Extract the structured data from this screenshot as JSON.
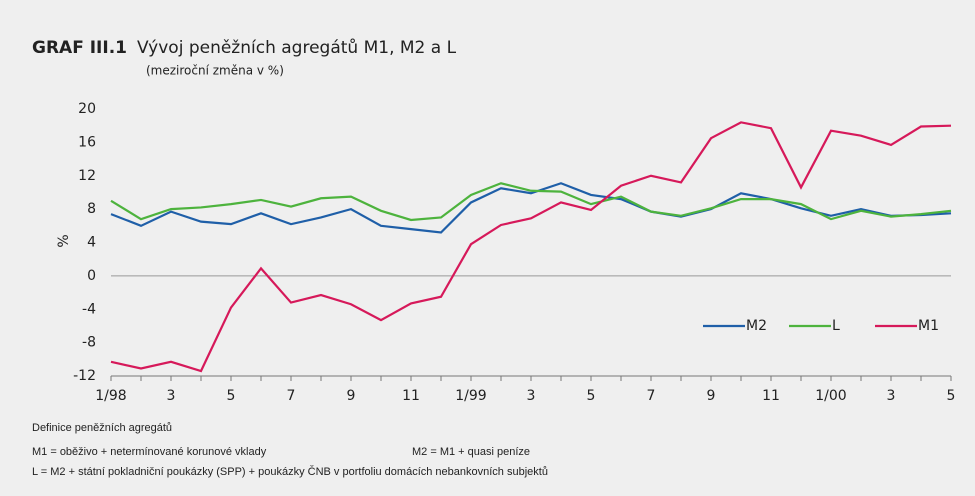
{
  "chart_data": {
    "type": "line",
    "title_label": "GRAF III.1",
    "title": "Vývoj peněžních agregátů M1, M2 a L",
    "subtitle": "(meziroční změna v %)",
    "y_label": "%",
    "categories": [
      "1/98",
      null,
      "3",
      null,
      "5",
      null,
      "7",
      null,
      "9",
      null,
      "11",
      null,
      "1/99",
      null,
      "3",
      null,
      "5",
      null,
      "7",
      null,
      "9",
      null,
      "11",
      null,
      "1/00",
      null,
      "3",
      null,
      "5"
    ],
    "series": [
      {
        "name": "M2",
        "color": "#1f5fa8",
        "values": [
          7.4,
          6.0,
          7.7,
          6.5,
          6.2,
          7.5,
          6.2,
          7.0,
          8.0,
          6.0,
          5.6,
          5.2,
          8.8,
          10.5,
          9.9,
          11.1,
          9.7,
          9.2,
          7.7,
          7.1,
          8.0,
          9.9,
          9.2,
          8.1,
          7.2,
          8.0,
          7.2,
          7.3,
          7.5
        ]
      },
      {
        "name": "L",
        "color": "#4db33d",
        "values": [
          9.0,
          6.8,
          8.0,
          8.2,
          8.6,
          9.1,
          8.3,
          9.3,
          9.5,
          7.8,
          6.7,
          7.0,
          9.7,
          11.1,
          10.2,
          10.1,
          8.6,
          9.5,
          7.7,
          7.2,
          8.1,
          9.2,
          9.2,
          8.6,
          6.8,
          7.8,
          7.1,
          7.4,
          7.8
        ]
      },
      {
        "name": "M1",
        "color": "#d6195a",
        "values": [
          -10.3,
          -11.1,
          -10.3,
          -11.4,
          -3.8,
          0.9,
          -3.2,
          -2.3,
          -3.4,
          -5.3,
          -3.3,
          -2.5,
          3.8,
          6.1,
          6.9,
          8.8,
          7.9,
          10.8,
          12.0,
          11.2,
          16.5,
          18.4,
          17.7,
          10.6,
          17.4,
          16.8,
          15.7,
          17.9,
          18.0
        ]
      }
    ],
    "ylim": [
      -12,
      20
    ],
    "yticks": [
      -12,
      -8,
      -4,
      0,
      4,
      8,
      12,
      16,
      20
    ],
    "legend": "lower right",
    "notes": {
      "heading": "Definice peněžních agregátů",
      "m1": "M1 = oběživo + netermínované korunové vklady",
      "m2": "M2 = M1 + quasi peníze",
      "l": "L   = M2 + státní pokladniční poukázky (SPP) + poukázky ČNB v portfoliu domácích nebankovních subjektů"
    }
  }
}
